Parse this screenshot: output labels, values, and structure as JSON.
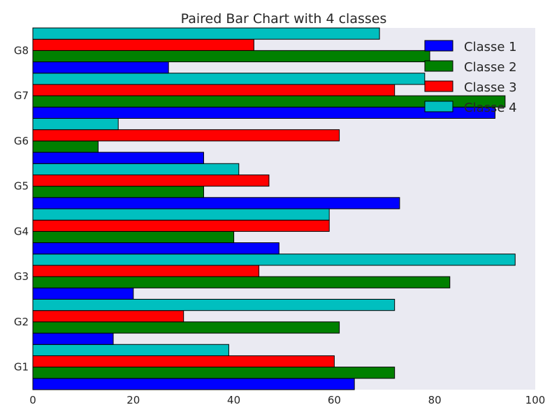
{
  "chart_data": {
    "type": "bar",
    "orientation": "horizontal",
    "title": "Paired Bar Chart with 4 classes",
    "xlabel": "",
    "ylabel": "",
    "xlim": [
      0,
      100
    ],
    "x_ticks": [
      0,
      20,
      40,
      60,
      80,
      100
    ],
    "categories": [
      "G1",
      "G2",
      "G3",
      "G4",
      "G5",
      "G6",
      "G7",
      "G8"
    ],
    "series": [
      {
        "name": "Classe 1",
        "color": "#0000ff",
        "values": [
          64,
          16,
          20,
          49,
          73,
          34,
          92,
          27
        ]
      },
      {
        "name": "Classe 2",
        "color": "#008000",
        "values": [
          72,
          61,
          83,
          40,
          34,
          13,
          94,
          79
        ]
      },
      {
        "name": "Classe 3",
        "color": "#ff0000",
        "values": [
          60,
          30,
          45,
          59,
          47,
          61,
          72,
          44
        ]
      },
      {
        "name": "Classe 4",
        "color": "#00bfbf",
        "values": [
          39,
          72,
          96,
          59,
          41,
          17,
          78,
          69
        ]
      }
    ],
    "legend_position": "top-right",
    "grid": false,
    "background": "#eaeaf2"
  }
}
